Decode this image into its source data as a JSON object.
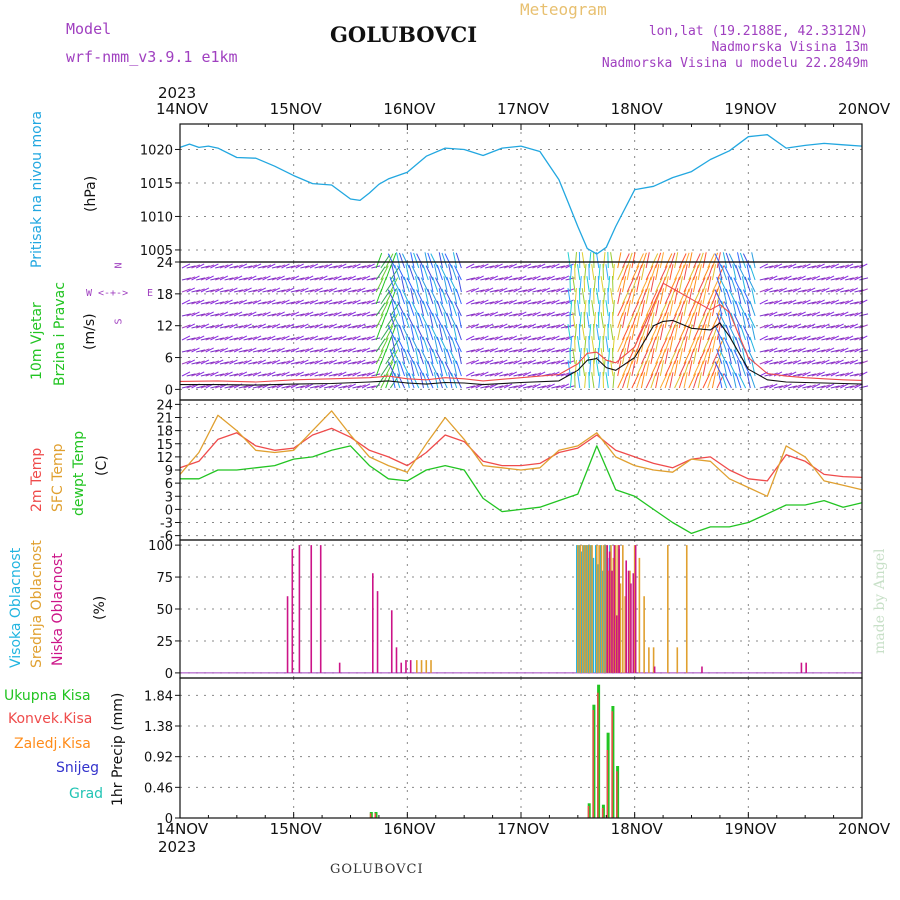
{
  "header": {
    "model_label": "Model",
    "model_value": "wrf-nmm_v3.9.1  e1km",
    "station": "GOLUBOVCI",
    "meteogram": "Meteogram",
    "lonlat": "lon,lat (19.2188E, 42.3312N)",
    "alt1": "Nadmorska Visina 13m",
    "alt2": "Nadmorska Visina u modelu 22.2849m",
    "footer_station": "GOLUBOVCI",
    "watermark": "made by Angel"
  },
  "time_axis": {
    "year": "2023",
    "labels": [
      "14NOV",
      "15NOV",
      "16NOV",
      "17NOV",
      "18NOV",
      "19NOV",
      "20NOV"
    ]
  },
  "labels": {
    "pressure": [
      "Pritisak na nivou mora",
      "(hPa)"
    ],
    "wind": [
      "10m Vjetar",
      "Brzina i Pravac",
      "(m/s)"
    ],
    "temp": [
      "2m Temp",
      "SFC Temp",
      "dewpt Temp",
      "(C)"
    ],
    "cloud": [
      "Visoka Oblacnost",
      "Srednja Oblacnost",
      "Niska Oblacnost",
      "(%)"
    ],
    "precip_legend": [
      "Ukupna Kisa",
      "Konvek.Kisa",
      "Zaledj.Kisa",
      "Snijeg",
      "Grad"
    ],
    "precip_axis": "1hr Precip (mm)",
    "compass": {
      "n": "N",
      "w": "W",
      "e": "E",
      "s": "S"
    }
  },
  "colors": {
    "pressure": "#22a7e0",
    "temp2m": "#ef4b4b",
    "sfc": "#e0a030",
    "dewpt": "#22c422",
    "high_cloud": "#22b5e0",
    "mid_cloud": "#e0a030",
    "low_cloud": "#cc1488",
    "total_rain": "#22c422",
    "conv_rain": "#ef4b4b",
    "freezing": "#ff8c1a",
    "snow": "#3333cc",
    "hail": "#22c4b4",
    "purple": "#a040c0",
    "gold": "#e8c070"
  },
  "chart_data": [
    {
      "type": "line",
      "name": "pressure",
      "yticks": [
        1005,
        1010,
        1015,
        1020
      ],
      "ylim": [
        1003.2,
        1023.8
      ],
      "x_hours": [
        0,
        2,
        4,
        6,
        8,
        12,
        16,
        20,
        24,
        28,
        32,
        36,
        38,
        40,
        42,
        44,
        48,
        52,
        56,
        60,
        64,
        68,
        72,
        76,
        80,
        82,
        84,
        86,
        88,
        90,
        92,
        96,
        100,
        104,
        108,
        112,
        116,
        120,
        124,
        128,
        132,
        136,
        140,
        144
      ],
      "values": [
        1020.3,
        1020.8,
        1020.3,
        1020.5,
        1020.2,
        1018.8,
        1018.7,
        1017.5,
        1016.1,
        1014.9,
        1014.7,
        1012.6,
        1012.4,
        1013.5,
        1014.8,
        1015.6,
        1016.6,
        1019.0,
        1020.2,
        1020.0,
        1019.1,
        1020.2,
        1020.5,
        1019.7,
        1015.5,
        1012.0,
        1008.5,
        1005.2,
        1004.4,
        1005.4,
        1008.5,
        1014.0,
        1014.5,
        1015.8,
        1016.7,
        1018.5,
        1019.8,
        1021.9,
        1022.2,
        1020.2,
        1020.6,
        1020.9,
        1020.7,
        1020.5
      ]
    },
    {
      "type": "line",
      "name": "wind",
      "yticks": [
        0,
        6,
        12,
        18,
        24
      ],
      "ylim": [
        -2,
        24
      ],
      "series": [
        {
          "name": "max_speed",
          "x_hours": [
            0,
            8,
            16,
            24,
            32,
            40,
            44,
            48,
            52,
            56,
            60,
            64,
            72,
            80,
            84,
            86,
            88,
            90,
            92,
            96,
            100,
            102,
            104,
            108,
            112,
            114,
            116,
            120,
            124,
            128,
            132,
            136,
            140,
            144
          ],
          "values": [
            1.5,
            1.6,
            1.4,
            1.8,
            2.0,
            2.2,
            2.5,
            2.0,
            1.8,
            2.2,
            2.0,
            1.6,
            2.2,
            2.8,
            4.8,
            6.8,
            7.0,
            5.5,
            5.0,
            8.0,
            16.0,
            20.0,
            19.0,
            17.0,
            15.0,
            16.0,
            14.5,
            6.0,
            3.0,
            2.5,
            2.2,
            2.0,
            1.8,
            1.7
          ]
        },
        {
          "name": "mean_speed",
          "x_hours": [
            0,
            8,
            16,
            24,
            32,
            40,
            44,
            48,
            52,
            56,
            60,
            64,
            72,
            80,
            84,
            86,
            88,
            90,
            92,
            96,
            100,
            102,
            104,
            108,
            112,
            114,
            116,
            120,
            124,
            128,
            132,
            136,
            140,
            144
          ],
          "values": [
            0.9,
            0.9,
            0.8,
            1.0,
            1.1,
            1.4,
            1.6,
            1.2,
            1.0,
            1.3,
            1.2,
            0.9,
            1.3,
            1.6,
            3.6,
            5.5,
            5.8,
            4.1,
            3.6,
            6.0,
            12.0,
            12.8,
            13.0,
            11.5,
            11.2,
            12.5,
            10.0,
            3.8,
            1.8,
            1.4,
            1.3,
            1.2,
            1.1,
            1.0
          ]
        }
      ],
      "direction_sectors": [
        {
          "start_h": 0,
          "end_h": 41,
          "dir": "purple"
        },
        {
          "start_h": 41,
          "end_h": 45,
          "dir": "green"
        },
        {
          "start_h": 45,
          "end_h": 60,
          "dir": "blue"
        },
        {
          "start_h": 60,
          "end_h": 82,
          "dir": "purple"
        },
        {
          "start_h": 82,
          "end_h": 92,
          "dir": "cyan-yellow"
        },
        {
          "start_h": 92,
          "end_h": 114,
          "dir": "orange-red"
        },
        {
          "start_h": 114,
          "end_h": 122,
          "dir": "blue"
        },
        {
          "start_h": 122,
          "end_h": 144,
          "dir": "purple"
        }
      ]
    },
    {
      "type": "line",
      "name": "temperature",
      "yticks": [
        -6,
        -3,
        0,
        3,
        6,
        9,
        12,
        15,
        18,
        21,
        24
      ],
      "ylim": [
        -7,
        25
      ],
      "series": [
        {
          "name": "2m",
          "x_hours": [
            0,
            4,
            8,
            12,
            16,
            20,
            24,
            28,
            32,
            36,
            40,
            44,
            48,
            52,
            56,
            60,
            64,
            68,
            72,
            76,
            80,
            84,
            88,
            92,
            96,
            100,
            104,
            108,
            112,
            116,
            120,
            124,
            128,
            132,
            136,
            140,
            144
          ],
          "values": [
            9.5,
            11.0,
            16.0,
            17.5,
            14.5,
            13.5,
            14.0,
            17.0,
            18.5,
            16.5,
            13.5,
            12.0,
            10.0,
            13.0,
            17.0,
            15.5,
            11.0,
            10.0,
            10.0,
            10.5,
            13.0,
            14.0,
            17.0,
            13.5,
            12.0,
            10.5,
            9.5,
            11.5,
            12.0,
            9.0,
            7.0,
            6.5,
            12.5,
            11.0,
            8.0,
            7.5,
            7.3
          ]
        },
        {
          "name": "sfc",
          "x_hours": [
            0,
            4,
            8,
            12,
            16,
            20,
            24,
            28,
            32,
            36,
            40,
            44,
            48,
            52,
            56,
            60,
            64,
            68,
            72,
            76,
            80,
            84,
            88,
            92,
            96,
            100,
            104,
            108,
            112,
            116,
            120,
            124,
            128,
            132,
            136,
            140,
            144
          ],
          "values": [
            8.0,
            13.0,
            21.5,
            18.0,
            13.5,
            13.0,
            13.5,
            18.0,
            22.5,
            17.0,
            12.0,
            10.0,
            8.5,
            15.0,
            21.0,
            16.0,
            10.0,
            9.5,
            9.0,
            9.5,
            13.5,
            14.5,
            17.5,
            12.0,
            10.0,
            9.0,
            8.5,
            11.5,
            11.0,
            7.0,
            5.0,
            3.0,
            14.5,
            12.0,
            6.5,
            5.5,
            4.5
          ]
        },
        {
          "name": "dewpt",
          "x_hours": [
            0,
            4,
            8,
            12,
            16,
            20,
            24,
            28,
            32,
            36,
            40,
            44,
            48,
            52,
            56,
            60,
            64,
            68,
            72,
            76,
            80,
            84,
            88,
            92,
            96,
            100,
            104,
            108,
            112,
            116,
            120,
            124,
            128,
            132,
            136,
            140,
            144
          ],
          "values": [
            7.0,
            7.0,
            9.0,
            9.0,
            9.5,
            10.0,
            11.5,
            12.0,
            13.5,
            14.5,
            10.0,
            7.0,
            6.5,
            9.0,
            10.0,
            9.0,
            2.5,
            -0.5,
            0.0,
            0.5,
            2.0,
            3.5,
            14.5,
            4.5,
            3.0,
            0.0,
            -3.0,
            -5.5,
            -4.0,
            -4.0,
            -3.0,
            -1.0,
            1.0,
            1.0,
            2.0,
            0.5,
            1.5
          ]
        }
      ]
    },
    {
      "type": "bar",
      "name": "cloud",
      "yticks": [
        0,
        25,
        50,
        75,
        100
      ],
      "ylim": [
        -4,
        104
      ],
      "low": {
        "x_hours": [
          22.5,
          23.5,
          25,
          27.5,
          29.5,
          33.5,
          40.5,
          41.5,
          44.5,
          45.5,
          46.5,
          47.5,
          48.5,
          90,
          90.5,
          91,
          91.5,
          92,
          92.5,
          92.5,
          94,
          94.5,
          95,
          95.5,
          96,
          100,
          110,
          131,
          132
        ],
        "values": [
          60,
          97,
          100,
          100,
          100,
          8,
          78,
          64,
          49,
          20,
          8,
          10,
          10,
          100,
          95,
          80,
          100,
          45,
          97,
          100,
          88,
          80,
          70,
          78,
          100,
          5,
          5,
          8,
          8
        ]
      },
      "mid": {
        "x_hours": [
          50,
          51,
          52,
          53,
          84,
          84.5,
          85,
          85.5,
          86,
          86.5,
          87,
          88,
          88.5,
          89,
          89.5,
          90,
          90.5,
          91,
          91.5,
          92,
          92.5,
          93,
          93.5,
          94,
          95,
          96,
          97,
          98,
          99,
          100,
          103,
          105,
          107
        ],
        "values": [
          10,
          10,
          10,
          10,
          100,
          100,
          100,
          100,
          100,
          100,
          100,
          100,
          100,
          100,
          100,
          100,
          80,
          100,
          90,
          100,
          100,
          70,
          100,
          60,
          80,
          100,
          90,
          60,
          20,
          20,
          100,
          20,
          100
        ]
      },
      "high": {
        "x_hours": [
          84,
          84.5,
          85,
          85.5,
          86,
          86.5,
          87,
          87.5,
          88,
          88.5,
          89,
          89.5,
          90,
          90.5,
          91,
          92,
          93
        ],
        "values": [
          100,
          100,
          95,
          100,
          100,
          100,
          100,
          90,
          100,
          85,
          100,
          80,
          100,
          90,
          100,
          70,
          60
        ]
      }
    },
    {
      "type": "bar",
      "name": "precip",
      "yticks": [
        0,
        0.46,
        0.92,
        1.38,
        1.84
      ],
      "ylim": [
        0,
        2.1
      ],
      "total": {
        "x_hours": [
          40.5,
          41.5,
          86.5,
          87.5,
          88.5,
          89.5,
          90.5,
          91.5,
          92.5
        ],
        "values": [
          0.09,
          0.09,
          0.22,
          1.7,
          2.0,
          0.2,
          1.28,
          1.68,
          0.78
        ]
      },
      "convective": {
        "x_hours": [
          40.5,
          41.5,
          86.5,
          87.5,
          88.5,
          89.5,
          90.5,
          91.5,
          92.5
        ],
        "values": [
          0.07,
          0.07,
          0.18,
          1.62,
          1.88,
          0.15,
          1.02,
          1.6,
          0.7
        ]
      }
    }
  ]
}
